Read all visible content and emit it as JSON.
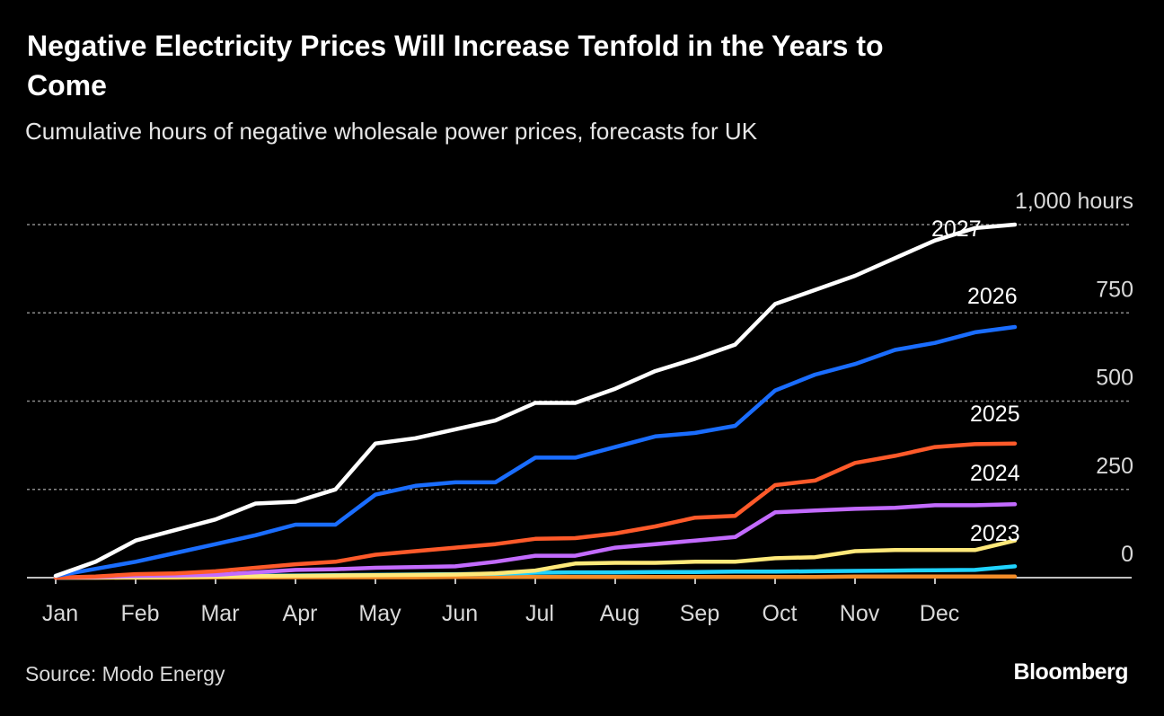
{
  "chart_data": {
    "type": "line",
    "title": "Negative Electricity Prices Will Increase Tenfold in the Years to Come",
    "subtitle": "Cumulative hours of negative wholesale power prices, forecasts for UK",
    "source": "Source: Modo Energy",
    "brand": "Bloomberg",
    "categories": [
      "Jan",
      null,
      "Feb",
      null,
      "Mar",
      null,
      "Apr",
      null,
      "May",
      null,
      "Jun",
      null,
      "Jul",
      null,
      "Aug",
      null,
      "Sep",
      null,
      "Oct",
      null,
      "Nov",
      null,
      "Dec",
      null,
      null
    ],
    "ylim": [
      0,
      1000
    ],
    "yticks": [
      0,
      250,
      500,
      750,
      {
        "value": 1000,
        "label": "1,000 hours"
      }
    ],
    "grid": true,
    "series": [
      {
        "color": "#f28c28",
        "values": [
          0,
          0,
          0,
          0,
          1,
          1,
          1,
          1,
          1,
          1,
          2,
          2,
          2,
          2,
          2,
          2,
          2,
          2,
          2,
          2,
          3,
          3,
          3,
          3,
          3
        ]
      },
      {
        "color": "#1fd3ff",
        "values": [
          0,
          1,
          2,
          3,
          4,
          5,
          6,
          7,
          8,
          9,
          10,
          11,
          14,
          15,
          15,
          16,
          16,
          17,
          17,
          18,
          19,
          20,
          21,
          22,
          32
        ]
      },
      {
        "name": "2023",
        "color": "#ffe97a",
        "values": [
          0,
          0,
          1,
          2,
          3,
          4,
          5,
          6,
          7,
          8,
          9,
          12,
          20,
          40,
          42,
          42,
          45,
          45,
          55,
          58,
          75,
          78,
          78,
          78,
          105
        ]
      },
      {
        "name": "2024",
        "color": "#c36bff",
        "values": [
          0,
          2,
          5,
          6,
          8,
          15,
          22,
          24,
          28,
          30,
          32,
          45,
          62,
          62,
          85,
          95,
          105,
          115,
          185,
          190,
          195,
          198,
          205,
          205,
          208
        ]
      },
      {
        "name": "2025",
        "color": "#ff5a2a",
        "values": [
          0,
          3,
          10,
          12,
          18,
          28,
          38,
          45,
          65,
          75,
          85,
          95,
          110,
          112,
          125,
          145,
          170,
          175,
          262,
          275,
          325,
          345,
          370,
          378,
          380
        ]
      },
      {
        "name": "2026",
        "color": "#1a6dff",
        "values": [
          5,
          25,
          45,
          70,
          95,
          120,
          150,
          150,
          235,
          260,
          270,
          270,
          340,
          340,
          370,
          400,
          410,
          430,
          530,
          575,
          605,
          645,
          665,
          695,
          710
        ]
      },
      {
        "name": "2027",
        "color": "#ffffff",
        "values": [
          5,
          45,
          105,
          135,
          165,
          210,
          215,
          250,
          380,
          395,
          420,
          445,
          495,
          495,
          535,
          585,
          620,
          660,
          775,
          815,
          855,
          905,
          955,
          990,
          1000
        ]
      }
    ]
  }
}
